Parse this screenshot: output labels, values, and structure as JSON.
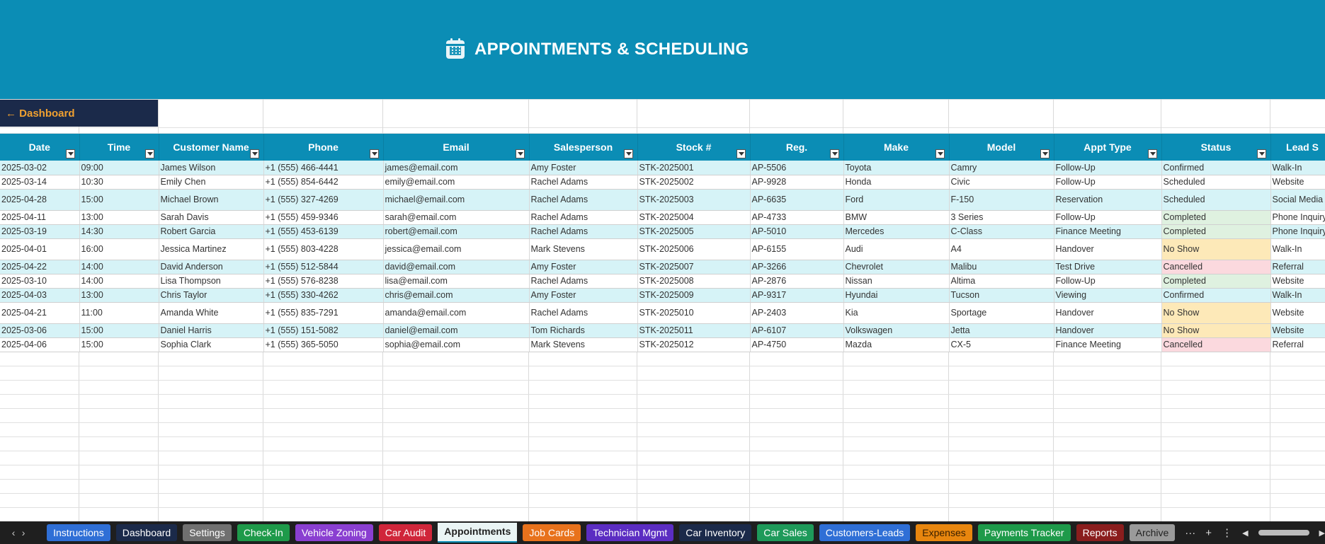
{
  "header": {
    "title": "APPOINTMENTS & SCHEDULING",
    "icon": "calendar-icon",
    "background": "#0b8db5"
  },
  "nav": {
    "dashboard_label": "← Dashboard"
  },
  "table": {
    "columns": [
      "Date",
      "Time",
      "Customer Name",
      "Phone",
      "Email",
      "Salesperson",
      "Stock #",
      "Reg.",
      "Make",
      "Model",
      "Appt Type",
      "Status",
      "Lead S"
    ],
    "rows": [
      [
        "2025-03-02",
        "09:00",
        "James Wilson",
        "+1 (555) 466-4441",
        "james@email.com",
        "Amy Foster",
        "STK-2025001",
        "AP-5506",
        "Toyota",
        "Camry",
        "Follow-Up",
        "Confirmed",
        "Walk-In"
      ],
      [
        "2025-03-14",
        "10:30",
        "Emily Chen",
        "+1 (555) 854-6442",
        "emily@email.com",
        "Rachel Adams",
        "STK-2025002",
        "AP-9928",
        "Honda",
        "Civic",
        "Follow-Up",
        "Scheduled",
        "Website"
      ],
      [
        "2025-04-28",
        "15:00",
        "Michael Brown",
        "+1 (555) 327-4269",
        "michael@email.com",
        "Rachel Adams",
        "STK-2025003",
        "AP-6635",
        "Ford",
        "F-150",
        "Reservation",
        "Scheduled",
        "Social Media"
      ],
      [
        "2025-04-11",
        "13:00",
        "Sarah Davis",
        "+1 (555) 459-9346",
        "sarah@email.com",
        "Rachel Adams",
        "STK-2025004",
        "AP-4733",
        "BMW",
        "3 Series",
        "Follow-Up",
        "Completed",
        "Phone Inquiry"
      ],
      [
        "2025-03-19",
        "14:30",
        "Robert Garcia",
        "+1 (555) 453-6139",
        "robert@email.com",
        "Rachel Adams",
        "STK-2025005",
        "AP-5010",
        "Mercedes",
        "C-Class",
        "Finance Meeting",
        "Completed",
        "Phone Inquiry"
      ],
      [
        "2025-04-01",
        "16:00",
        "Jessica Martinez",
        "+1 (555) 803-4228",
        "jessica@email.com",
        "Mark Stevens",
        "STK-2025006",
        "AP-6155",
        "Audi",
        "A4",
        "Handover",
        "No Show",
        "Walk-In"
      ],
      [
        "2025-04-22",
        "14:00",
        "David Anderson",
        "+1 (555) 512-5844",
        "david@email.com",
        "Amy Foster",
        "STK-2025007",
        "AP-3266",
        "Chevrolet",
        "Malibu",
        "Test Drive",
        "Cancelled",
        "Referral"
      ],
      [
        "2025-03-10",
        "14:00",
        "Lisa Thompson",
        "+1 (555) 576-8238",
        "lisa@email.com",
        "Rachel Adams",
        "STK-2025008",
        "AP-2876",
        "Nissan",
        "Altima",
        "Follow-Up",
        "Completed",
        "Website"
      ],
      [
        "2025-04-03",
        "13:00",
        "Chris Taylor",
        "+1 (555) 330-4262",
        "chris@email.com",
        "Amy Foster",
        "STK-2025009",
        "AP-9317",
        "Hyundai",
        "Tucson",
        "Viewing",
        "Confirmed",
        "Walk-In"
      ],
      [
        "2025-04-21",
        "11:00",
        "Amanda White",
        "+1 (555) 835-7291",
        "amanda@email.com",
        "Rachel Adams",
        "STK-2025010",
        "AP-2403",
        "Kia",
        "Sportage",
        "Handover",
        "No Show",
        "Website"
      ],
      [
        "2025-03-06",
        "15:00",
        "Daniel Harris",
        "+1 (555) 151-5082",
        "daniel@email.com",
        "Tom Richards",
        "STK-2025011",
        "AP-6107",
        "Volkswagen",
        "Jetta",
        "Handover",
        "No Show",
        "Website"
      ],
      [
        "2025-04-06",
        "15:00",
        "Sophia Clark",
        "+1 (555) 365-5050",
        "sophia@email.com",
        "Mark Stevens",
        "STK-2025012",
        "AP-4750",
        "Mazda",
        "CX-5",
        "Finance Meeting",
        "Cancelled",
        "Referral"
      ]
    ]
  },
  "tabs": [
    {
      "label": "Instructions",
      "color": "#2f6fd6"
    },
    {
      "label": "Dashboard",
      "color": "#1b2a4a"
    },
    {
      "label": "Settings",
      "color": "#707070"
    },
    {
      "label": "Check-In",
      "color": "#1e9a4a"
    },
    {
      "label": "Vehicle Zoning",
      "color": "#8a3fd1"
    },
    {
      "label": "Car Audit",
      "color": "#d0263a"
    },
    {
      "label": "Appointments",
      "color": "#eaf4f4",
      "active": true
    },
    {
      "label": "Job Cards",
      "color": "#e8721c"
    },
    {
      "label": "Technician Mgmt",
      "color": "#5b2dc2"
    },
    {
      "label": "Car Inventory",
      "color": "#1b2a4a"
    },
    {
      "label": "Car Sales",
      "color": "#1e9a5a"
    },
    {
      "label": "Customers-Leads",
      "color": "#2f6fd6"
    },
    {
      "label": "Expenses",
      "color": "#e8860e",
      "textColor": "#3a2000"
    },
    {
      "label": "Payments Tracker",
      "color": "#1e9a4a"
    },
    {
      "label": "Reports",
      "color": "#8a1d1d"
    },
    {
      "label": "Archive",
      "color": "#9a9a9a",
      "textColor": "#222"
    }
  ]
}
